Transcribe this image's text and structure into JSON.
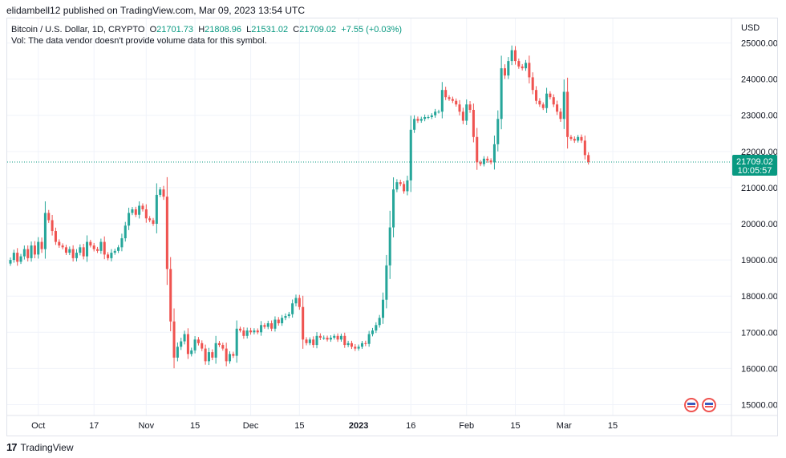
{
  "header": {
    "publish_line": "elidambell12 published on TradingView.com, Mar 09, 2023 13:54 UTC"
  },
  "legend": {
    "symbol": "Bitcoin / U.S. Dollar, 1D, CRYPTO",
    "o_label": "O",
    "o_value": "21701.73",
    "h_label": "H",
    "h_value": "21808.96",
    "l_label": "L",
    "l_value": "21531.02",
    "c_label": "C",
    "c_value": "21709.02",
    "change": "+7.55 (+0.03%)",
    "vol_note": "Vol: The data vendor doesn't provide volume data for this symbol."
  },
  "footer": {
    "brand": "TradingView",
    "logo_mark": "17"
  },
  "colors": {
    "up": "#26a69a",
    "down": "#ef5350",
    "grid": "#f0f3fa",
    "price_tag": "#089981"
  },
  "icons": [
    "flag-icon",
    "flag-icon"
  ],
  "chart_data": {
    "type": "candlestick",
    "currency_label": "USD",
    "last_price_label": "21709.02",
    "countdown": "10:05:57",
    "last_price": 21709.02,
    "y_ticks": [
      "25000.00",
      "24000.00",
      "23000.00",
      "22000.00",
      "21000.00",
      "20000.00",
      "19000.00",
      "18000.00",
      "17000.00",
      "16000.00",
      "15000.00"
    ],
    "y_range": [
      14700,
      25700
    ],
    "x_range": [
      0,
      208
    ],
    "x_ticks": [
      {
        "label": "Oct",
        "i": 8,
        "bold": false
      },
      {
        "label": "17",
        "i": 24,
        "bold": false
      },
      {
        "label": "Nov",
        "i": 39,
        "bold": false
      },
      {
        "label": "15",
        "i": 53,
        "bold": false
      },
      {
        "label": "Dec",
        "i": 69,
        "bold": false
      },
      {
        "label": "15",
        "i": 83,
        "bold": false
      },
      {
        "label": "2023",
        "i": 100,
        "bold": true
      },
      {
        "label": "16",
        "i": 115,
        "bold": false
      },
      {
        "label": "Feb",
        "i": 131,
        "bold": false
      },
      {
        "label": "15",
        "i": 145,
        "bold": false
      },
      {
        "label": "Mar",
        "i": 159,
        "bold": false
      },
      {
        "label": "15",
        "i": 173,
        "bold": false
      }
    ],
    "closes": [
      19000,
      19200,
      18950,
      19100,
      19300,
      19050,
      19400,
      19150,
      19500,
      19300,
      20300,
      20100,
      19800,
      19500,
      19400,
      19350,
      19200,
      19300,
      19050,
      19200,
      19350,
      19100,
      19500,
      19400,
      19300,
      19250,
      19500,
      19150,
      19050,
      19200,
      19250,
      19350,
      19600,
      19950,
      20300,
      20400,
      20250,
      20500,
      20400,
      20150,
      20100,
      20000,
      20800,
      20950,
      20750,
      18750,
      17300,
      16300,
      16600,
      16750,
      16950,
      16400,
      16500,
      16800,
      16700,
      16550,
      16200,
      16450,
      16300,
      16700,
      16650,
      16550,
      16200,
      16400,
      16350,
      17100,
      17050,
      16900,
      17050,
      17000,
      17050,
      17000,
      17200,
      17150,
      17250,
      17100,
      17350,
      17250,
      17400,
      17450,
      17500,
      17800,
      17950,
      17700,
      16800,
      16700,
      16800,
      16650,
      16900,
      16850,
      16850,
      16800,
      16850,
      16900,
      16800,
      16900,
      16650,
      16700,
      16600,
      16550,
      16600,
      16700,
      16680,
      16950,
      17050,
      17200,
      17400,
      17900,
      18850,
      19900,
      20950,
      21150,
      21100,
      20900,
      21200,
      22600,
      22900,
      22850,
      22900,
      22950,
      22950,
      23000,
      23100,
      23100,
      23700,
      23500,
      23450,
      23400,
      23300,
      23100,
      22850,
      23300,
      23150,
      22400,
      21700,
      21650,
      21800,
      21750,
      21700,
      22200,
      22900,
      24300,
      24100,
      24500,
      24800,
      24500,
      24350,
      24300,
      24450,
      24050,
      23700,
      23400,
      23300,
      23200,
      23600,
      23500,
      23300,
      23100,
      22900,
      23650,
      22400,
      22350,
      22300,
      22400,
      22300,
      21900,
      21709.02
    ],
    "wicks": [
      0.28,
      0.22,
      0.35,
      0.18,
      0.3,
      0.25,
      0.2,
      0.32,
      0.26,
      0.4
    ]
  }
}
